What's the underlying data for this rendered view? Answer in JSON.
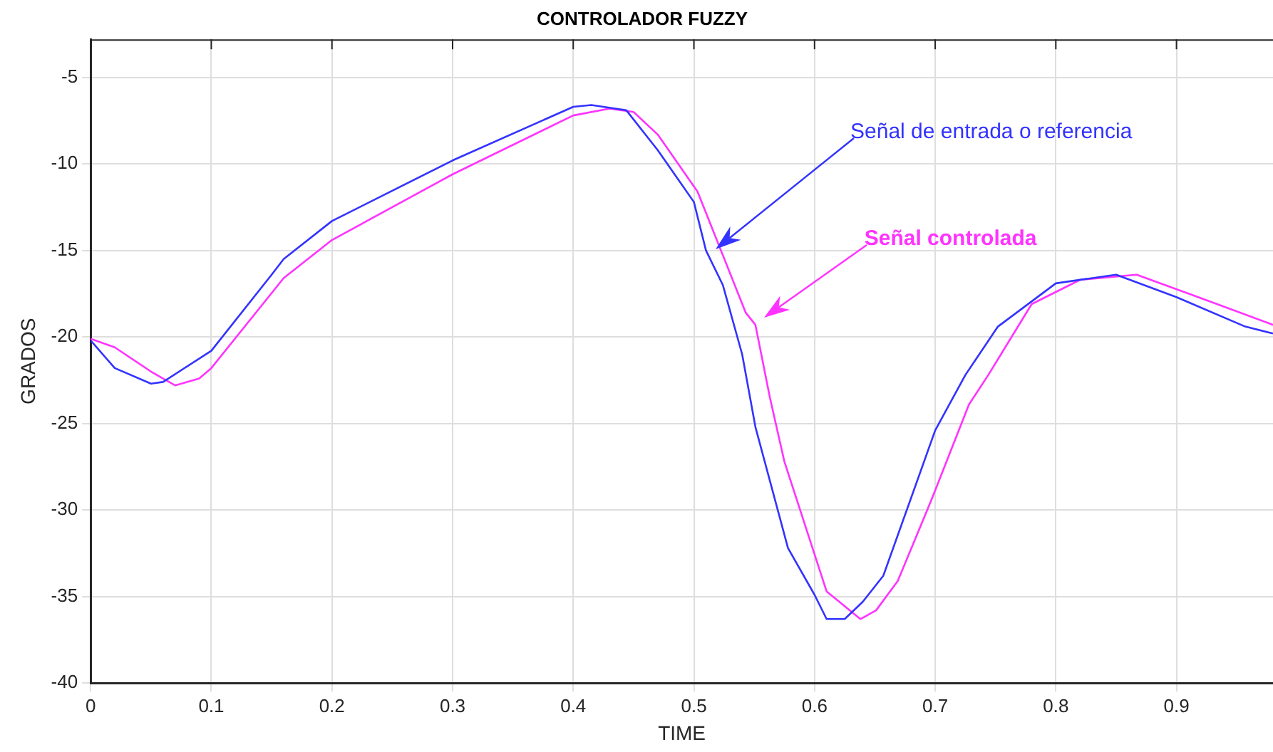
{
  "chart_data": {
    "type": "line",
    "title": "CONTROLADOR FUZZY",
    "xlabel": "TIME",
    "ylabel": "GRADOS",
    "xlim": [
      0,
      0.98
    ],
    "ylim": [
      -40,
      -2.8
    ],
    "xticks": [
      0,
      0.1,
      0.2,
      0.3,
      0.4,
      0.5,
      0.6,
      0.7,
      0.8,
      0.9
    ],
    "yticks": [
      -40,
      -35,
      -30,
      -25,
      -20,
      -15,
      -10,
      -5
    ],
    "grid": true,
    "legend": false,
    "marker": "none",
    "line_style": "solid",
    "series": [
      {
        "color": "#3333ff",
        "x": [
          0,
          0.02,
          0.05,
          0.06,
          0.1,
          0.15,
          0.16,
          0.2,
          0.3,
          0.4,
          0.415,
          0.444,
          0.47,
          0.5,
          0.51,
          0.524,
          0.54,
          0.551,
          0.578,
          0.6,
          0.61,
          0.625,
          0.64,
          0.657,
          0.7,
          0.725,
          0.752,
          0.8,
          0.85,
          0.9,
          0.957,
          0.98
        ],
        "values": [
          -20.2,
          -21.8,
          -22.7,
          -22.6,
          -20.8,
          -16.4,
          -15.5,
          -13.3,
          -9.8,
          -6.7,
          -6.6,
          -6.9,
          -9.2,
          -12.2,
          -15,
          -17,
          -21,
          -25.2,
          -32.2,
          -34.9,
          -36.3,
          -36.3,
          -35.3,
          -33.8,
          -25.4,
          -22.2,
          -19.4,
          -16.9,
          -16.4,
          -17.7,
          -19.4,
          -19.8
        ]
      },
      {
        "color": "#ff33ff",
        "x": [
          0,
          0.02,
          0.05,
          0.07,
          0.09,
          0.1,
          0.16,
          0.2,
          0.3,
          0.4,
          0.43,
          0.45,
          0.47,
          0.503,
          0.543,
          0.551,
          0.563,
          0.575,
          0.61,
          0.638,
          0.651,
          0.669,
          0.697,
          0.728,
          0.744,
          0.78,
          0.82,
          0.867,
          0.918,
          0.98
        ],
        "values": [
          -20.1,
          -20.6,
          -22,
          -22.8,
          -22.4,
          -21.8,
          -16.6,
          -14.4,
          -10.6,
          -7.2,
          -6.8,
          -7,
          -8.3,
          -11.6,
          -18.6,
          -19.3,
          -23.5,
          -27.2,
          -34.7,
          -36.3,
          -35.8,
          -34.1,
          -29.4,
          -23.9,
          -22.2,
          -18.1,
          -16.7,
          -16.4,
          -17.7,
          -19.3
        ]
      }
    ],
    "annotations": [
      "Señal de entrada o referencia",
      "Señal controlada"
    ]
  }
}
